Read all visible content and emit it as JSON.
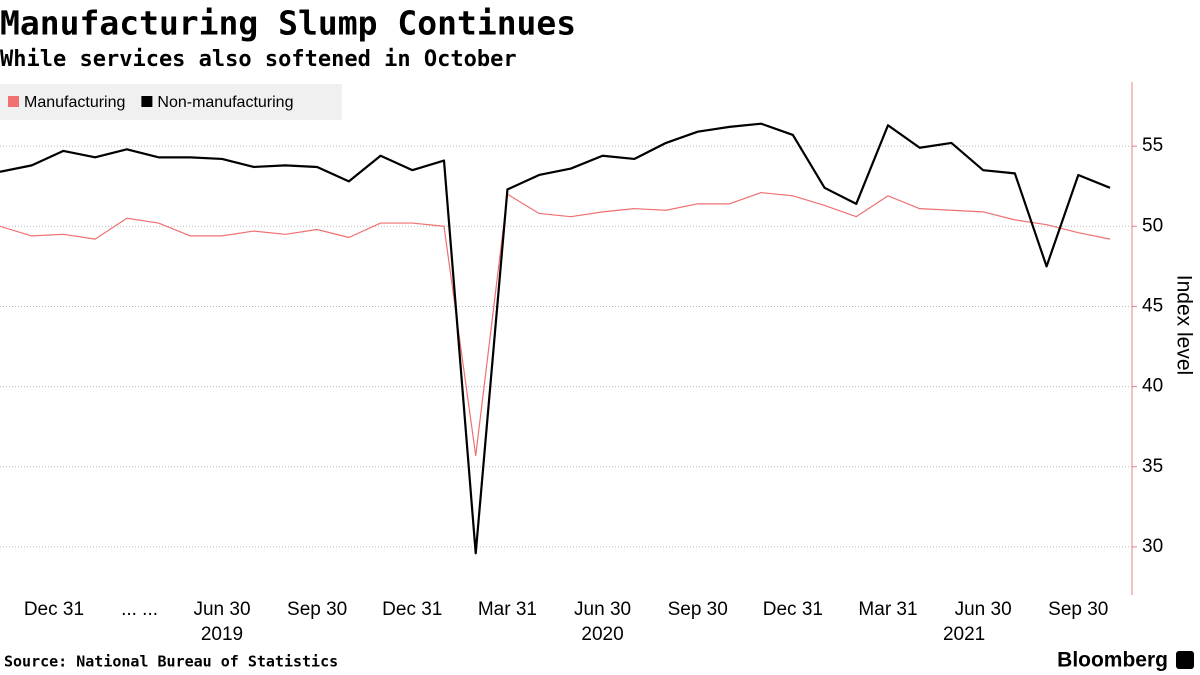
{
  "chart_data": {
    "type": "line",
    "title": "Manufacturing Slump Continues",
    "subtitle": "While services also softened in October",
    "y_label": "Index level",
    "source": "Source: National Bureau of Statistics",
    "brand": "Bloomberg",
    "x": [
      0,
      1,
      2,
      3,
      4,
      5,
      6,
      7,
      8,
      9,
      10,
      11,
      12,
      13,
      14,
      15,
      16,
      17,
      18,
      19,
      20,
      21,
      22,
      23,
      24,
      25,
      26,
      27,
      28,
      29,
      30,
      31,
      32,
      33,
      34,
      35
    ],
    "series": [
      {
        "name": "Manufacturing",
        "color": "#f07070",
        "values": [
          50.0,
          49.4,
          49.5,
          49.2,
          50.5,
          50.2,
          49.4,
          49.4,
          49.7,
          49.5,
          49.8,
          49.3,
          50.2,
          50.2,
          50.0,
          35.7,
          52.0,
          50.8,
          50.6,
          50.9,
          51.1,
          51.0,
          51.4,
          51.4,
          52.1,
          51.9,
          51.3,
          50.6,
          51.9,
          51.1,
          51.0,
          50.9,
          50.4,
          50.1,
          49.6,
          49.2
        ]
      },
      {
        "name": "Non-manufacturing",
        "color": "#000000",
        "values": [
          53.4,
          53.8,
          54.7,
          54.3,
          54.8,
          54.3,
          54.3,
          54.2,
          53.7,
          53.8,
          53.7,
          52.8,
          54.4,
          53.5,
          54.1,
          29.6,
          52.3,
          53.2,
          53.6,
          54.4,
          54.2,
          55.2,
          55.9,
          56.2,
          56.4,
          55.7,
          52.4,
          51.4,
          56.3,
          54.9,
          55.2,
          53.5,
          53.3,
          47.5,
          53.2,
          52.4
        ]
      }
    ],
    "xlim": [
      0,
      35
    ],
    "xticks": [
      {
        "value": 1.7,
        "label": "Dec 31"
      },
      {
        "value": 4.4,
        "label": "... ..."
      },
      {
        "value": 7,
        "label": "Jun 30"
      },
      {
        "value": 10,
        "label": "Sep 30"
      },
      {
        "value": 13,
        "label": "Dec 31"
      },
      {
        "value": 16,
        "label": "Mar 31"
      },
      {
        "value": 19,
        "label": "Jun 30"
      },
      {
        "value": 22,
        "label": "Sep 30"
      },
      {
        "value": 25,
        "label": "Dec 31"
      },
      {
        "value": 28,
        "label": "Mar 31"
      },
      {
        "value": 31,
        "label": "Jun 30"
      },
      {
        "value": 34,
        "label": "Sep 30"
      }
    ],
    "x_year_labels": [
      {
        "value": 7,
        "label": "2019"
      },
      {
        "value": 19,
        "label": "2020"
      },
      {
        "value": 30.4,
        "label": "2021"
      }
    ],
    "ylim": [
      27,
      59
    ],
    "yticks": [
      30,
      35,
      40,
      45,
      50,
      55
    ],
    "grid": true,
    "legend": "top-left"
  }
}
